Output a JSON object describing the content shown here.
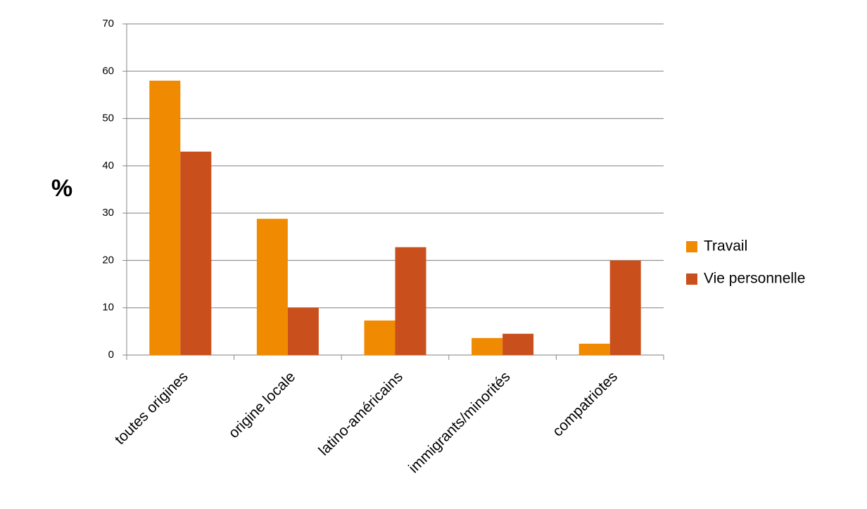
{
  "chart_data": {
    "type": "bar",
    "y_label": "%",
    "categories": [
      "toutes origines",
      "origine locale",
      "latino-américains",
      "immigrants/minorités",
      "compatriotes"
    ],
    "series": [
      {
        "name": "Travail",
        "color": "#f08a00",
        "values": [
          58,
          28.8,
          7.3,
          3.6,
          2.4
        ]
      },
      {
        "name": "Vie personnelle",
        "color": "#c9501c",
        "values": [
          43,
          10,
          22.8,
          4.5,
          20
        ]
      }
    ],
    "ylim": [
      0,
      70
    ],
    "yticks": [
      0,
      10,
      20,
      30,
      40,
      50,
      60,
      70
    ],
    "grid": true,
    "legend": "right"
  }
}
